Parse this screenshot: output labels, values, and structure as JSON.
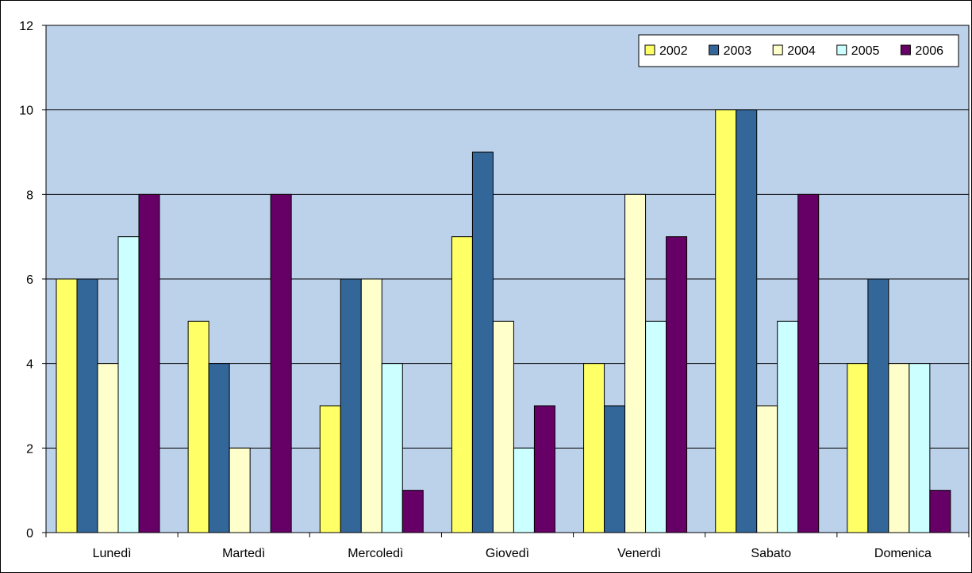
{
  "chart_data": {
    "type": "bar",
    "categories": [
      "Lunedì",
      "Martedì",
      "Mercoledì",
      "Giovedì",
      "Venerdì",
      "Sabato",
      "Domenica"
    ],
    "series": [
      {
        "name": "2002",
        "color": "#FFFF66",
        "values": [
          6,
          5,
          3,
          7,
          4,
          10,
          4
        ]
      },
      {
        "name": "2003",
        "color": "#336699",
        "values": [
          6,
          4,
          6,
          9,
          3,
          10,
          6
        ]
      },
      {
        "name": "2004",
        "color": "#FFFFCC",
        "values": [
          4,
          2,
          6,
          5,
          8,
          3,
          4
        ]
      },
      {
        "name": "2005",
        "color": "#CCFFFF",
        "values": [
          7,
          0,
          4,
          2,
          5,
          5,
          4
        ]
      },
      {
        "name": "2006",
        "color": "#660066",
        "values": [
          8,
          8,
          1,
          3,
          7,
          8,
          1
        ]
      }
    ],
    "yticks": [
      "0",
      "2",
      "4",
      "6",
      "8",
      "10",
      "12"
    ],
    "ylim": [
      0,
      12
    ],
    "title": "",
    "xlabel": "",
    "ylabel": "",
    "grid": true,
    "legend": "top-right",
    "plot_background": "#BCD1EA"
  }
}
